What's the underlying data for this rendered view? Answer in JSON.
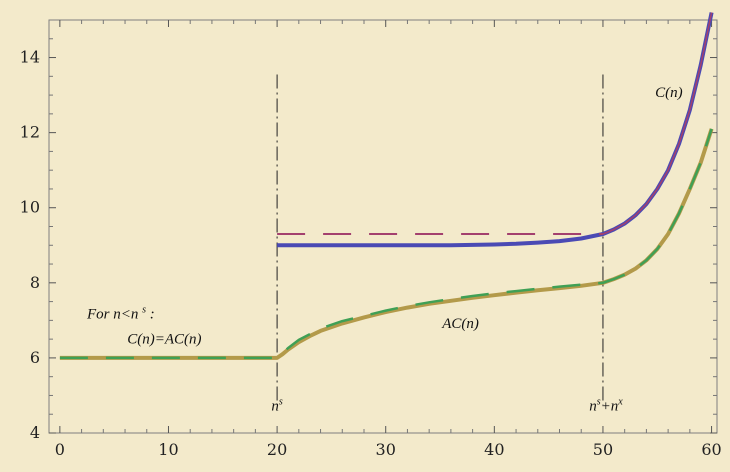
{
  "chart_data": {
    "type": "line",
    "title": "",
    "xlabel": "",
    "ylabel": "",
    "xlim": [
      -1,
      60.5
    ],
    "ylim": [
      4,
      15
    ],
    "xticks": [
      0,
      10,
      20,
      30,
      40,
      50,
      60
    ],
    "yticks": [
      4,
      6,
      8,
      10,
      12,
      14
    ],
    "grid": false,
    "background": "#f3eacb",
    "frame_color": "#7f7f7f",
    "vertical_markers": [
      {
        "x": 20,
        "label_base": "n",
        "label_sup": "s"
      },
      {
        "x": 50,
        "label_base": "n",
        "label_sup": "s",
        "label_mid": "+n",
        "label_sup2": "x"
      }
    ],
    "series": [
      {
        "name": "C(n)",
        "style": "solid",
        "color": "#4a4ab4",
        "width": 4,
        "x": [
          20,
          22,
          24,
          26,
          28,
          30,
          32,
          34,
          36,
          38,
          40,
          42,
          44,
          46,
          48,
          50,
          51,
          52,
          53,
          54,
          55,
          56,
          57,
          58,
          59,
          60
        ],
        "y": [
          9.0,
          9.0,
          9.0,
          9.0,
          9.0,
          9.0,
          9.0,
          9.0,
          9.0,
          9.01,
          9.02,
          9.04,
          9.07,
          9.11,
          9.18,
          9.3,
          9.42,
          9.58,
          9.8,
          10.1,
          10.5,
          11.0,
          11.7,
          12.6,
          13.8,
          15.2
        ]
      },
      {
        "name": "",
        "style": "dashed",
        "color": "#a3406e",
        "width": 2,
        "x": [
          20,
          50
        ],
        "y": [
          9.3,
          9.3
        ]
      },
      {
        "name": "",
        "style": "solid",
        "color": "#a3406e",
        "width": 1.5,
        "x": [
          50,
          51,
          52,
          53,
          54,
          55,
          56,
          57,
          58,
          59,
          60
        ],
        "y": [
          9.3,
          9.42,
          9.58,
          9.8,
          10.1,
          10.5,
          11.0,
          11.7,
          12.6,
          13.8,
          15.2
        ]
      },
      {
        "name": "AC(n)",
        "style": "solid",
        "color": "#b39a4a",
        "width": 4,
        "x": [
          0,
          20,
          20.5,
          21,
          22,
          23,
          24,
          26,
          28,
          30,
          32,
          34,
          36,
          38,
          40,
          42,
          44,
          46,
          48,
          50,
          51,
          52,
          53,
          54,
          55,
          56,
          57,
          58,
          59,
          60
        ],
        "y": [
          6.0,
          6.0,
          6.1,
          6.22,
          6.42,
          6.58,
          6.72,
          6.92,
          7.08,
          7.22,
          7.34,
          7.44,
          7.52,
          7.6,
          7.67,
          7.74,
          7.8,
          7.86,
          7.92,
          8.0,
          8.1,
          8.22,
          8.38,
          8.6,
          8.9,
          9.3,
          9.85,
          10.5,
          11.2,
          12.1
        ]
      },
      {
        "name": "",
        "style": "dashed",
        "color": "#3fa055",
        "width": 2.5,
        "x": [
          0,
          20,
          20.5,
          21,
          22,
          24,
          26,
          28,
          30,
          32,
          34,
          36,
          38,
          40,
          42,
          44,
          46,
          48,
          50,
          51,
          52,
          53,
          54,
          55,
          56,
          57,
          58,
          59,
          60
        ],
        "y": [
          6.0,
          6.0,
          6.12,
          6.26,
          6.48,
          6.78,
          6.98,
          7.12,
          7.26,
          7.38,
          7.48,
          7.57,
          7.65,
          7.72,
          7.78,
          7.84,
          7.9,
          7.95,
          8.0,
          8.1,
          8.22,
          8.38,
          8.6,
          8.9,
          9.3,
          9.85,
          10.5,
          11.2,
          12.1
        ]
      }
    ],
    "annotations": {
      "c_label": {
        "text": "C(n)",
        "x": 54.8,
        "y": 12.95
      },
      "ac_label": {
        "text": "AC(n)",
        "x": 35.2,
        "y": 6.8
      },
      "for_label": {
        "text": "For n<n",
        "sup": "s",
        "tail": " :",
        "x": 2.5,
        "y": 7.05
      },
      "eq_label": {
        "text": "C(n)=AC(n)",
        "x": 6.2,
        "y": 6.38
      }
    }
  }
}
